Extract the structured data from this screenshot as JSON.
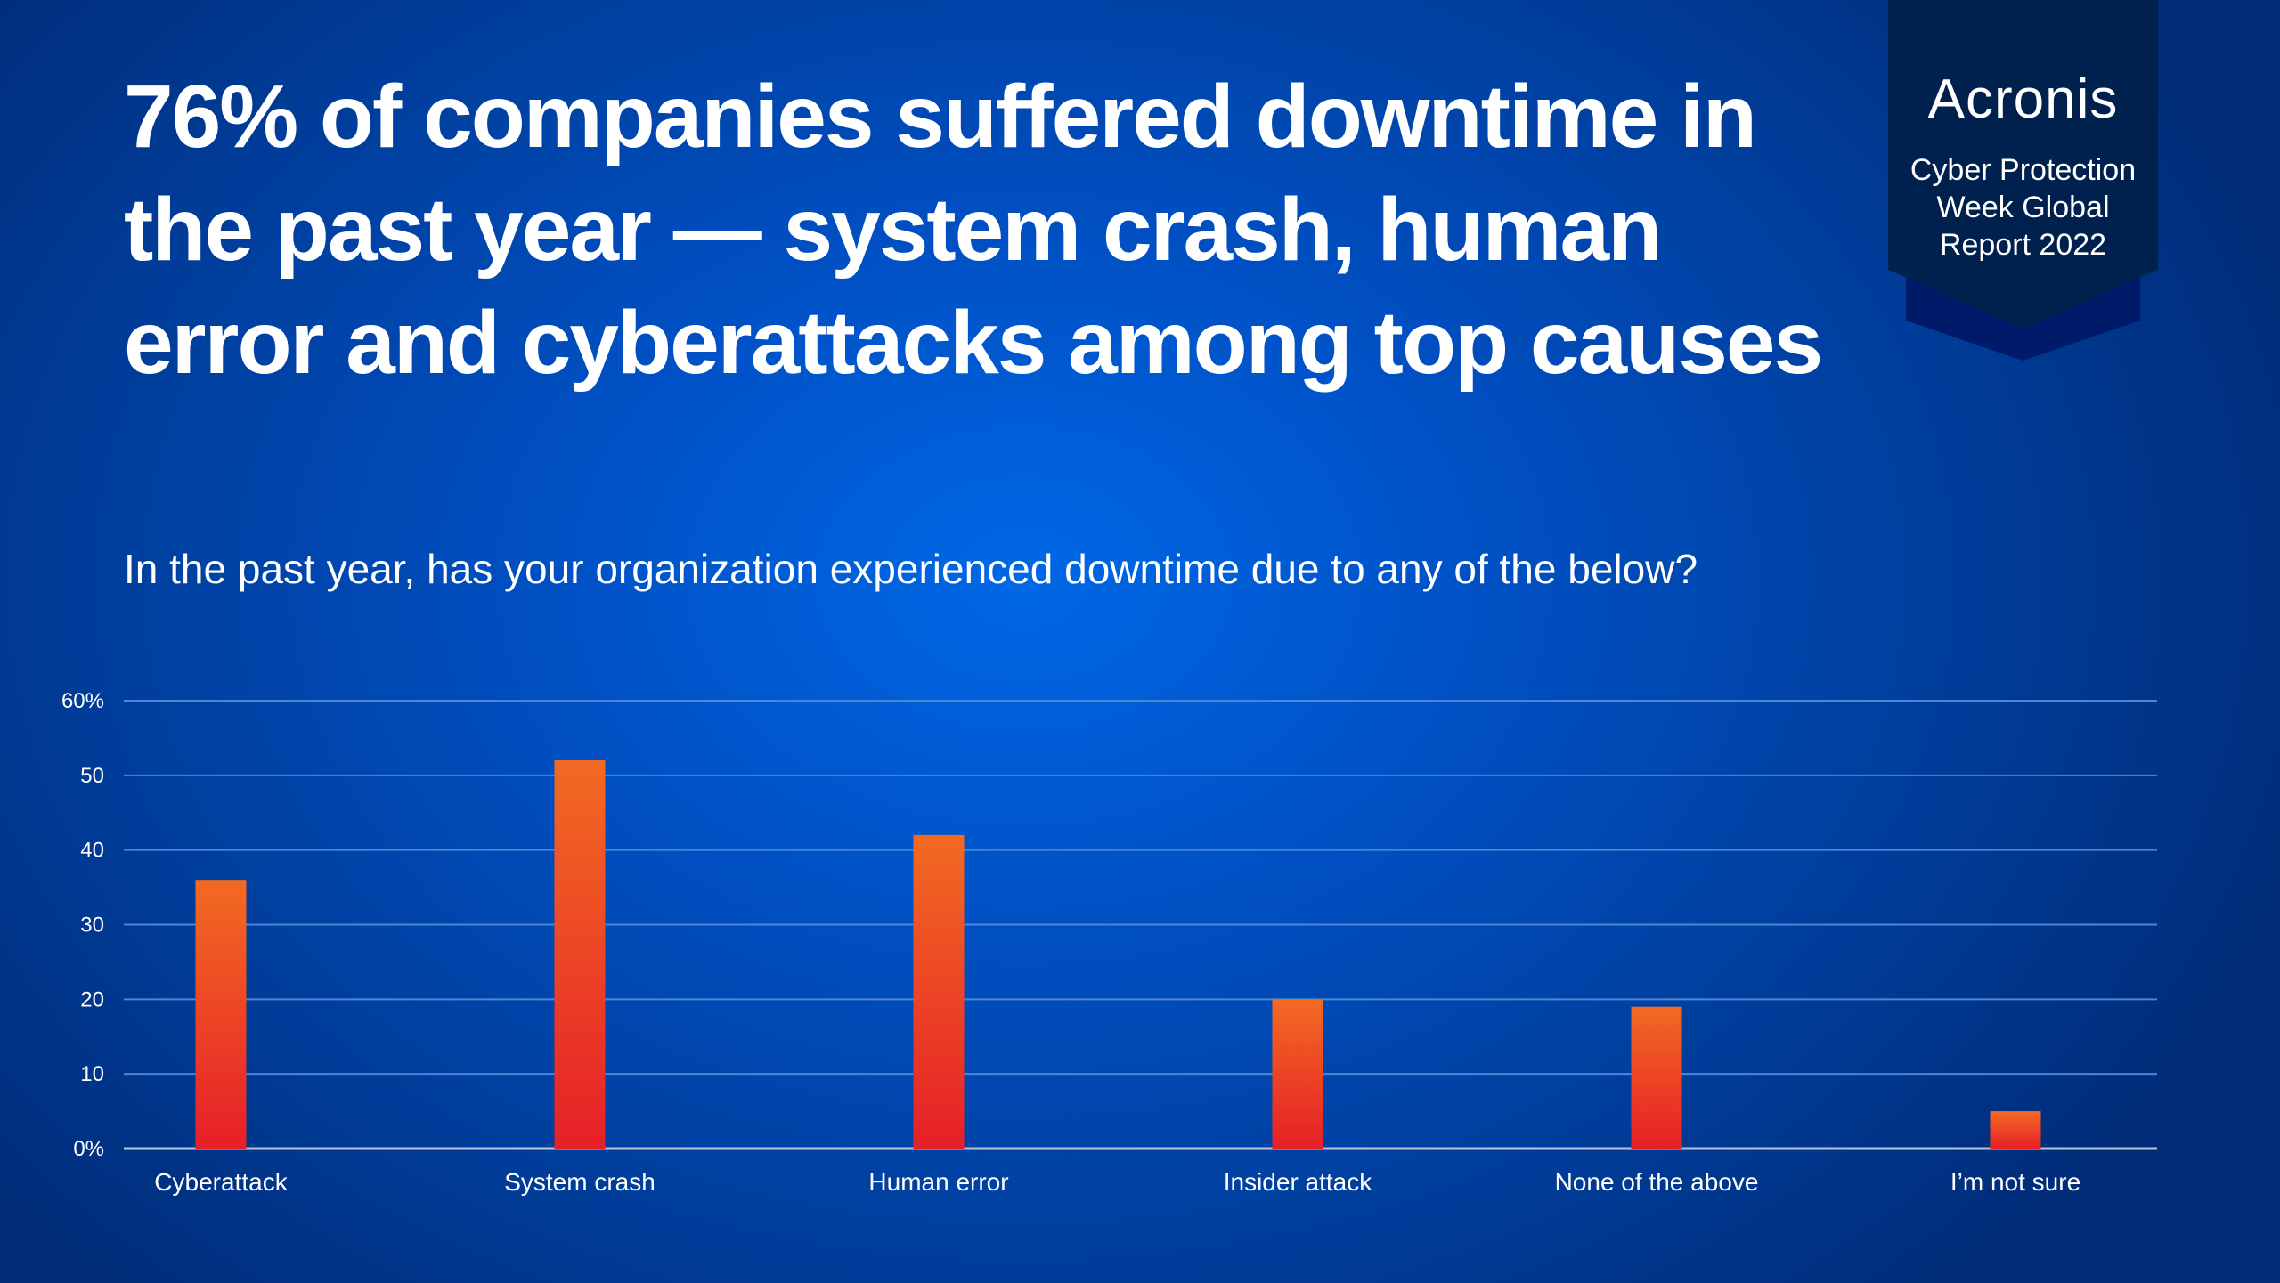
{
  "title": "76% of companies suffered downtime in the past year — system crash, human error and cyberattacks among top causes",
  "subtitle": "In the past year, has your organization experienced downtime due to any of the below?",
  "badge": {
    "logo": "Acronis",
    "report_lines": [
      "Cyber Protection",
      "Week Global",
      "Report 2022"
    ]
  },
  "colors": {
    "bar_top": "#f26a22",
    "bar_bottom": "#e62028",
    "badge": "#00204d"
  },
  "chart_data": {
    "type": "bar",
    "title": "In the past year, has your organization experienced downtime due to any of the below?",
    "categories": [
      "Cyberattack",
      "System crash",
      "Human error",
      "Insider attack",
      "None of the above",
      "I’m not sure"
    ],
    "values": [
      36,
      52,
      42,
      20,
      19,
      5
    ],
    "ylim": [
      0,
      60
    ],
    "yticks": [
      0,
      10,
      20,
      30,
      40,
      50,
      60
    ],
    "ytick_labels": [
      "0%",
      "10",
      "20",
      "30",
      "40",
      "50",
      "60%"
    ],
    "xlabel": "",
    "ylabel": "",
    "grid": true
  }
}
